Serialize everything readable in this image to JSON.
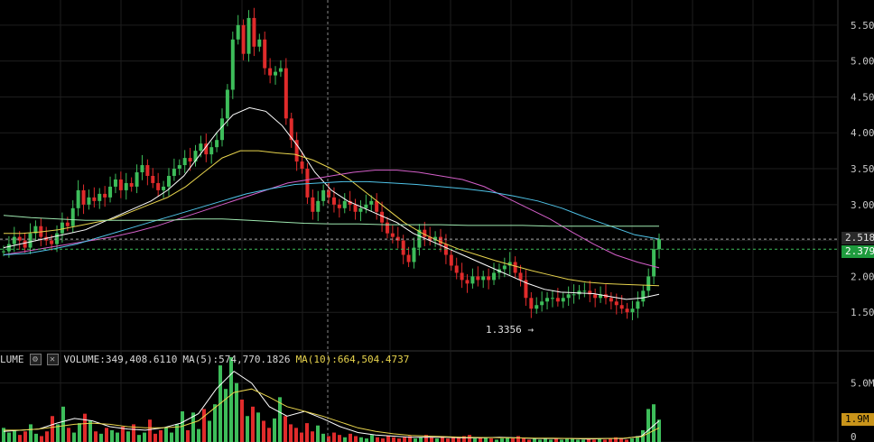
{
  "chart_data": {
    "type": "candlestick",
    "price_axis": {
      "ticks": [
        "5.500",
        "5.000",
        "4.500",
        "4.000",
        "3.500",
        "3.000",
        "2.500",
        "2.000",
        "1.500"
      ],
      "range": [
        1.0,
        5.85
      ]
    },
    "volume_axis": {
      "ticks": [
        "5.0M",
        "0"
      ],
      "range": [
        0,
        7500000
      ]
    },
    "current_price_labels": {
      "last": "2.518",
      "green": "2.379"
    },
    "volume_current_label": "1.9M",
    "low_annotation": "1.3356 →",
    "price_series_close": [
      2.35,
      2.45,
      2.55,
      2.5,
      2.4,
      2.6,
      2.7,
      2.55,
      2.5,
      2.45,
      2.6,
      2.75,
      2.7,
      2.95,
      3.2,
      3.0,
      3.1,
      3.05,
      3.15,
      3.1,
      3.25,
      3.35,
      3.2,
      3.3,
      3.25,
      3.45,
      3.55,
      3.4,
      3.3,
      3.2,
      3.25,
      3.4,
      3.5,
      3.55,
      3.65,
      3.6,
      3.75,
      3.85,
      3.7,
      3.8,
      3.9,
      4.2,
      4.6,
      5.3,
      5.5,
      5.1,
      5.6,
      5.2,
      5.3,
      4.9,
      4.8,
      4.85,
      4.9,
      4.2,
      3.9,
      3.6,
      3.5,
      3.1,
      2.9,
      3.05,
      3.2,
      3.1,
      3.0,
      2.95,
      3.05,
      3.0,
      2.9,
      2.95,
      3.0,
      3.05,
      2.9,
      2.75,
      2.6,
      2.55,
      2.5,
      2.3,
      2.2,
      2.4,
      2.65,
      2.55,
      2.5,
      2.55,
      2.45,
      2.3,
      2.15,
      2.05,
      1.95,
      1.9,
      2.0,
      1.95,
      2.0,
      1.95,
      2.05,
      2.1,
      2.15,
      2.2,
      2.05,
      1.95,
      1.7,
      1.55,
      1.6,
      1.65,
      1.7,
      1.7,
      1.65,
      1.7,
      1.75,
      1.75,
      1.8,
      1.8,
      1.75,
      1.7,
      1.75,
      1.7,
      1.65,
      1.6,
      1.55,
      1.5,
      1.55,
      1.65,
      1.8,
      2.0,
      2.379,
      2.518
    ],
    "volume_series": [
      1.2,
      0.8,
      1.0,
      0.6,
      0.9,
      1.5,
      0.7,
      0.5,
      0.9,
      2.2,
      1.5,
      3.0,
      1.2,
      0.8,
      1.6,
      2.4,
      1.8,
      0.9,
      0.7,
      1.2,
      1.0,
      0.8,
      1.3,
      0.9,
      1.5,
      0.6,
      0.8,
      1.9,
      0.7,
      1.0,
      1.2,
      0.8,
      1.5,
      2.6,
      1.0,
      2.5,
      1.1,
      2.8,
      1.8,
      3.2,
      6.5,
      4.5,
      7.2,
      5.0,
      3.6,
      2.2,
      3.0,
      2.5,
      1.8,
      1.2,
      2.0,
      3.8,
      2.2,
      1.5,
      1.2,
      0.8,
      1.6,
      0.9,
      1.4,
      0.7,
      0.5,
      0.8,
      0.6,
      0.4,
      0.7,
      0.5,
      0.4,
      0.3,
      0.6,
      0.4,
      0.3,
      0.5,
      0.4,
      0.3,
      0.4,
      0.5,
      0.3,
      0.4,
      0.6,
      0.4,
      0.3,
      0.5,
      0.3,
      0.4,
      0.4,
      0.5,
      0.6,
      0.3,
      0.4,
      0.4,
      0.3,
      0.2,
      0.3,
      0.4,
      0.3,
      0.5,
      0.3,
      0.2,
      0.3,
      0.2,
      0.3,
      0.2,
      0.3,
      0.2,
      0.3,
      0.3,
      0.2,
      0.2,
      0.3,
      0.2,
      0.3,
      0.2,
      0.3,
      0.4,
      0.3,
      0.2,
      0.3,
      0.5,
      1.0,
      2.8,
      3.2,
      1.9
    ],
    "moving_averages": [
      {
        "color": "#ffffff",
        "values": [
          2.4,
          2.45,
          2.5,
          2.55,
          2.6,
          2.65,
          2.75,
          2.85,
          2.95,
          3.05,
          3.2,
          3.4,
          3.7,
          4.0,
          4.25,
          4.35,
          4.3,
          4.1,
          3.8,
          3.45,
          3.2,
          3.05,
          2.95,
          2.85,
          2.75,
          2.6,
          2.5,
          2.4,
          2.3,
          2.2,
          2.1,
          2.0,
          1.9,
          1.82,
          1.78,
          1.77,
          1.76,
          1.72,
          1.68,
          1.7,
          1.75
        ]
      },
      {
        "color": "#e8d44d",
        "values": [
          2.6,
          2.6,
          2.62,
          2.65,
          2.7,
          2.75,
          2.8,
          2.9,
          3.0,
          3.1,
          3.25,
          3.45,
          3.65,
          3.75,
          3.75,
          3.72,
          3.7,
          3.62,
          3.5,
          3.35,
          3.15,
          2.95,
          2.75,
          2.6,
          2.48,
          2.38,
          2.3,
          2.22,
          2.15,
          2.08,
          2.02,
          1.96,
          1.92,
          1.9,
          1.89,
          1.88,
          1.87
        ]
      },
      {
        "color": "#d45fc9",
        "values": [
          2.3,
          2.35,
          2.4,
          2.45,
          2.5,
          2.55,
          2.62,
          2.7,
          2.8,
          2.9,
          3.0,
          3.1,
          3.2,
          3.3,
          3.35,
          3.4,
          3.45,
          3.48,
          3.48,
          3.45,
          3.4,
          3.35,
          3.25,
          3.1,
          2.95,
          2.8,
          2.62,
          2.45,
          2.3,
          2.2,
          2.12
        ]
      },
      {
        "color": "#4fc3e8",
        "values": [
          2.3,
          2.32,
          2.38,
          2.45,
          2.55,
          2.65,
          2.75,
          2.85,
          2.95,
          3.05,
          3.15,
          3.22,
          3.28,
          3.3,
          3.32,
          3.32,
          3.3,
          3.28,
          3.25,
          3.22,
          3.18,
          3.12,
          3.05,
          2.95,
          2.82,
          2.7,
          2.58,
          2.52
        ]
      },
      {
        "color": "#9ee8b0",
        "values": [
          2.85,
          2.82,
          2.8,
          2.78,
          2.78,
          2.78,
          2.78,
          2.8,
          2.8,
          2.78,
          2.76,
          2.74,
          2.73,
          2.73,
          2.72,
          2.72,
          2.72,
          2.71,
          2.71,
          2.71,
          2.7,
          2.7,
          2.7,
          2.7,
          2.7
        ]
      }
    ],
    "volume_ma": [
      {
        "name": "MA(5)",
        "color": "#ffffff",
        "values": [
          0.9,
          1.0,
          1.1,
          1.6,
          2.0,
          1.8,
          1.3,
          1.1,
          1.0,
          1.2,
          1.6,
          2.4,
          4.5,
          6.0,
          5.0,
          3.0,
          2.2,
          2.6,
          2.0,
          1.3,
          0.8,
          0.6,
          0.5,
          0.4,
          0.4,
          0.4,
          0.35,
          0.35,
          0.4,
          0.35,
          0.3,
          0.3,
          0.3,
          0.25,
          0.3,
          0.3,
          0.5,
          1.8
        ]
      },
      {
        "name": "MA(10)",
        "color": "#e8d44d",
        "values": [
          1.0,
          1.0,
          1.1,
          1.3,
          1.5,
          1.6,
          1.5,
          1.3,
          1.2,
          1.2,
          1.3,
          1.8,
          3.0,
          4.2,
          4.5,
          3.8,
          3.0,
          2.6,
          2.2,
          1.7,
          1.2,
          0.9,
          0.7,
          0.55,
          0.5,
          0.45,
          0.4,
          0.38,
          0.37,
          0.35,
          0.33,
          0.32,
          0.3,
          0.3,
          0.3,
          0.32,
          0.45,
          1.2
        ]
      }
    ],
    "grid": true
  },
  "legend": {
    "prefix": "LUME",
    "settings_icon": "gear-icon",
    "close_icon": "close-icon",
    "volume_text": "VOLUME:349,408.6110",
    "ma5_text": "MA(5):574,770.1826",
    "ma10_text": "MA(10):664,504.4737"
  },
  "colors": {
    "up": "#3dbd5a",
    "down": "#e02b2b",
    "grid": "#1e1e1e",
    "axis_text": "#c8c8c8",
    "tag_last_bg": "#2a2a2a",
    "tag_green_bg": "#1f9c3e",
    "tag_volume_bg": "#c9941a"
  }
}
